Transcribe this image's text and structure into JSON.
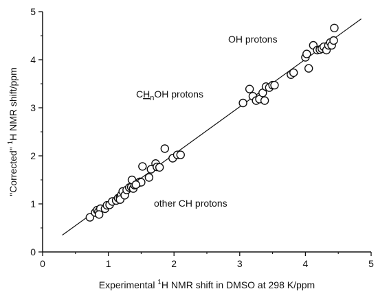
{
  "chart_data": {
    "type": "scatter",
    "xlabel": {
      "before": "Experimental ",
      "sup": "1",
      "after": "H NMR shift in DMSO at 298 K/ppm"
    },
    "ylabel": {
      "before": "\"Corrected\" ",
      "sup": "1",
      "after": "H NMR shift/ppm"
    },
    "xlim": [
      0,
      5
    ],
    "ylim": [
      0,
      5
    ],
    "xticks": [
      "0",
      "1",
      "2",
      "3",
      "4",
      "5"
    ],
    "yticks": [
      "0",
      "1",
      "2",
      "3",
      "4",
      "5"
    ],
    "grid": false,
    "legend": "none",
    "fit_line": {
      "x": [
        0.3,
        4.85
      ],
      "y": [
        0.35,
        4.85
      ]
    },
    "annotations": {
      "oh": "OH protons",
      "chnoh": {
        "c": "C",
        "h": "H",
        "sub": "n",
        "rest": "OH protons"
      },
      "other": "other CH protons"
    },
    "points": [
      [
        0.72,
        0.72
      ],
      [
        0.8,
        0.82
      ],
      [
        0.83,
        0.87
      ],
      [
        0.85,
        0.84
      ],
      [
        0.88,
        0.9
      ],
      [
        0.86,
        0.78
      ],
      [
        0.95,
        0.9
      ],
      [
        0.98,
        0.97
      ],
      [
        1.02,
        0.98
      ],
      [
        1.06,
        1.05
      ],
      [
        1.12,
        1.07
      ],
      [
        1.15,
        1.12
      ],
      [
        1.18,
        1.14
      ],
      [
        1.2,
        1.19
      ],
      [
        1.22,
        1.26
      ],
      [
        1.18,
        1.09
      ],
      [
        1.25,
        1.18
      ],
      [
        1.28,
        1.29
      ],
      [
        1.32,
        1.34
      ],
      [
        1.35,
        1.35
      ],
      [
        1.38,
        1.32
      ],
      [
        1.4,
        1.39
      ],
      [
        1.42,
        1.43
      ],
      [
        1.45,
        1.43
      ],
      [
        1.48,
        1.46
      ],
      [
        1.5,
        1.45
      ],
      [
        1.36,
        1.5
      ],
      [
        1.42,
        1.4
      ],
      [
        1.52,
        1.78
      ],
      [
        1.62,
        1.55
      ],
      [
        1.65,
        1.72
      ],
      [
        1.72,
        1.84
      ],
      [
        1.74,
        1.77
      ],
      [
        1.78,
        1.76
      ],
      [
        1.86,
        2.15
      ],
      [
        1.98,
        1.95
      ],
      [
        2.05,
        2.02
      ],
      [
        2.1,
        2.02
      ],
      [
        3.05,
        3.1
      ],
      [
        3.15,
        3.39
      ],
      [
        3.2,
        3.24
      ],
      [
        3.25,
        3.15
      ],
      [
        3.3,
        3.18
      ],
      [
        3.35,
        3.31
      ],
      [
        3.4,
        3.44
      ],
      [
        3.38,
        3.15
      ],
      [
        3.45,
        3.42
      ],
      [
        3.5,
        3.47
      ],
      [
        3.53,
        3.47
      ],
      [
        3.78,
        3.69
      ],
      [
        3.82,
        3.73
      ],
      [
        4.0,
        4.05
      ],
      [
        4.02,
        4.12
      ],
      [
        4.05,
        3.82
      ],
      [
        4.12,
        4.3
      ],
      [
        4.18,
        4.2
      ],
      [
        4.22,
        4.21
      ],
      [
        4.25,
        4.23
      ],
      [
        4.28,
        4.27
      ],
      [
        4.32,
        4.2
      ],
      [
        4.35,
        4.3
      ],
      [
        4.38,
        4.36
      ],
      [
        4.4,
        4.3
      ],
      [
        4.43,
        4.4
      ],
      [
        4.44,
        4.66
      ]
    ]
  }
}
